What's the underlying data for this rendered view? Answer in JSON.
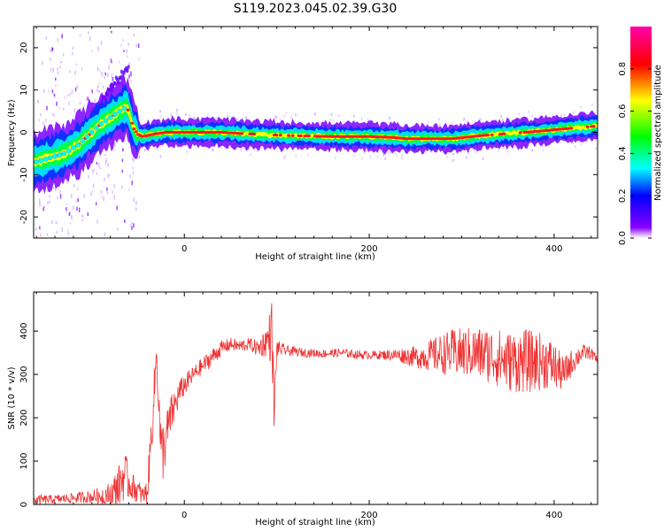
{
  "title": "S119.2023.045.02.39.G30",
  "colors": {
    "snr_line": "#ee3333",
    "background": "#ffffff",
    "axes": "#000000"
  },
  "chart_data": [
    {
      "type": "heatmap",
      "xlabel": "Height of straight line (km)",
      "ylabel": "Frequency (Hz)",
      "xlim": [
        -163,
        447
      ],
      "ylim": [
        -25,
        25
      ],
      "x_ticks": [
        0,
        200,
        400
      ],
      "y_ticks": [
        -20,
        -10,
        0,
        10,
        20
      ],
      "colorbar": {
        "label": "Normalized spectral amplitude",
        "range": [
          0.0,
          1.0
        ],
        "ticks": [
          0.0,
          0.2,
          0.4,
          0.6,
          0.8
        ],
        "colormap": "rainbow (violet → blue → cyan → green → yellow → red → magenta)"
      },
      "ridge": {
        "name": "dominant Doppler track",
        "x": [
          -160,
          -145,
          -130,
          -115,
          -100,
          -90,
          -80,
          -70,
          -62,
          -55,
          -50,
          -45,
          -35,
          -20,
          0,
          40,
          80,
          120,
          160,
          200,
          225,
          240,
          260,
          290,
          320,
          350,
          380,
          410,
          447
        ],
        "y": [
          -7,
          -6,
          -5,
          -3,
          0,
          2,
          3.5,
          5,
          6,
          1,
          -0.5,
          -1,
          -0.5,
          0,
          0,
          0,
          -0.5,
          -0.8,
          -1,
          -1,
          -1.2,
          -1.5,
          -1.5,
          -1.5,
          -0.8,
          -0.3,
          0.2,
          0.8,
          1.5
        ]
      },
      "secondary_track": {
        "x": [
          -100,
          -90,
          -80,
          -70,
          -60
        ],
        "y": [
          4,
          7,
          10,
          13,
          15
        ]
      }
    },
    {
      "type": "line",
      "xlabel": "Height of straight line (km)",
      "ylabel": "SNR (10 * v/v)",
      "xlim": [
        -163,
        447
      ],
      "ylim": [
        0,
        490
      ],
      "x_ticks": [
        0,
        200,
        400
      ],
      "y_ticks": [
        0,
        100,
        200,
        300,
        400
      ],
      "series": [
        {
          "x": [
            -163,
            -140,
            -120,
            -100,
            -80,
            -70,
            -65,
            -60,
            -55,
            -50,
            -45,
            -40,
            -35,
            -30,
            -25,
            -20,
            -15,
            -10,
            -5,
            0,
            10,
            20,
            30,
            40,
            50,
            60,
            70,
            80,
            90,
            95,
            97,
            100,
            110,
            130,
            150,
            170,
            190,
            210,
            230,
            250,
            270,
            290,
            310,
            330,
            350,
            370,
            390,
            400,
            410,
            420,
            430,
            440,
            447
          ],
          "y": [
            10,
            12,
            15,
            18,
            22,
            45,
            70,
            50,
            40,
            30,
            20,
            30,
            180,
            350,
            110,
            150,
            200,
            230,
            260,
            275,
            300,
            320,
            340,
            360,
            370,
            365,
            370,
            360,
            380,
            400,
            200,
            360,
            355,
            350,
            348,
            350,
            345,
            345,
            345,
            340,
            345,
            350,
            350,
            345,
            330,
            330,
            330,
            320,
            300,
            330,
            350,
            350,
            330
          ],
          "amp": [
            12,
            10,
            12,
            15,
            30,
            50,
            60,
            40,
            30,
            30,
            20,
            30,
            60,
            40,
            80,
            60,
            50,
            40,
            30,
            25,
            20,
            20,
            20,
            18,
            15,
            15,
            15,
            20,
            40,
            80,
            60,
            20,
            12,
            10,
            10,
            10,
            10,
            10,
            15,
            25,
            40,
            55,
            60,
            65,
            70,
            75,
            65,
            55,
            40,
            30,
            20,
            15,
            10
          ]
        }
      ]
    }
  ]
}
